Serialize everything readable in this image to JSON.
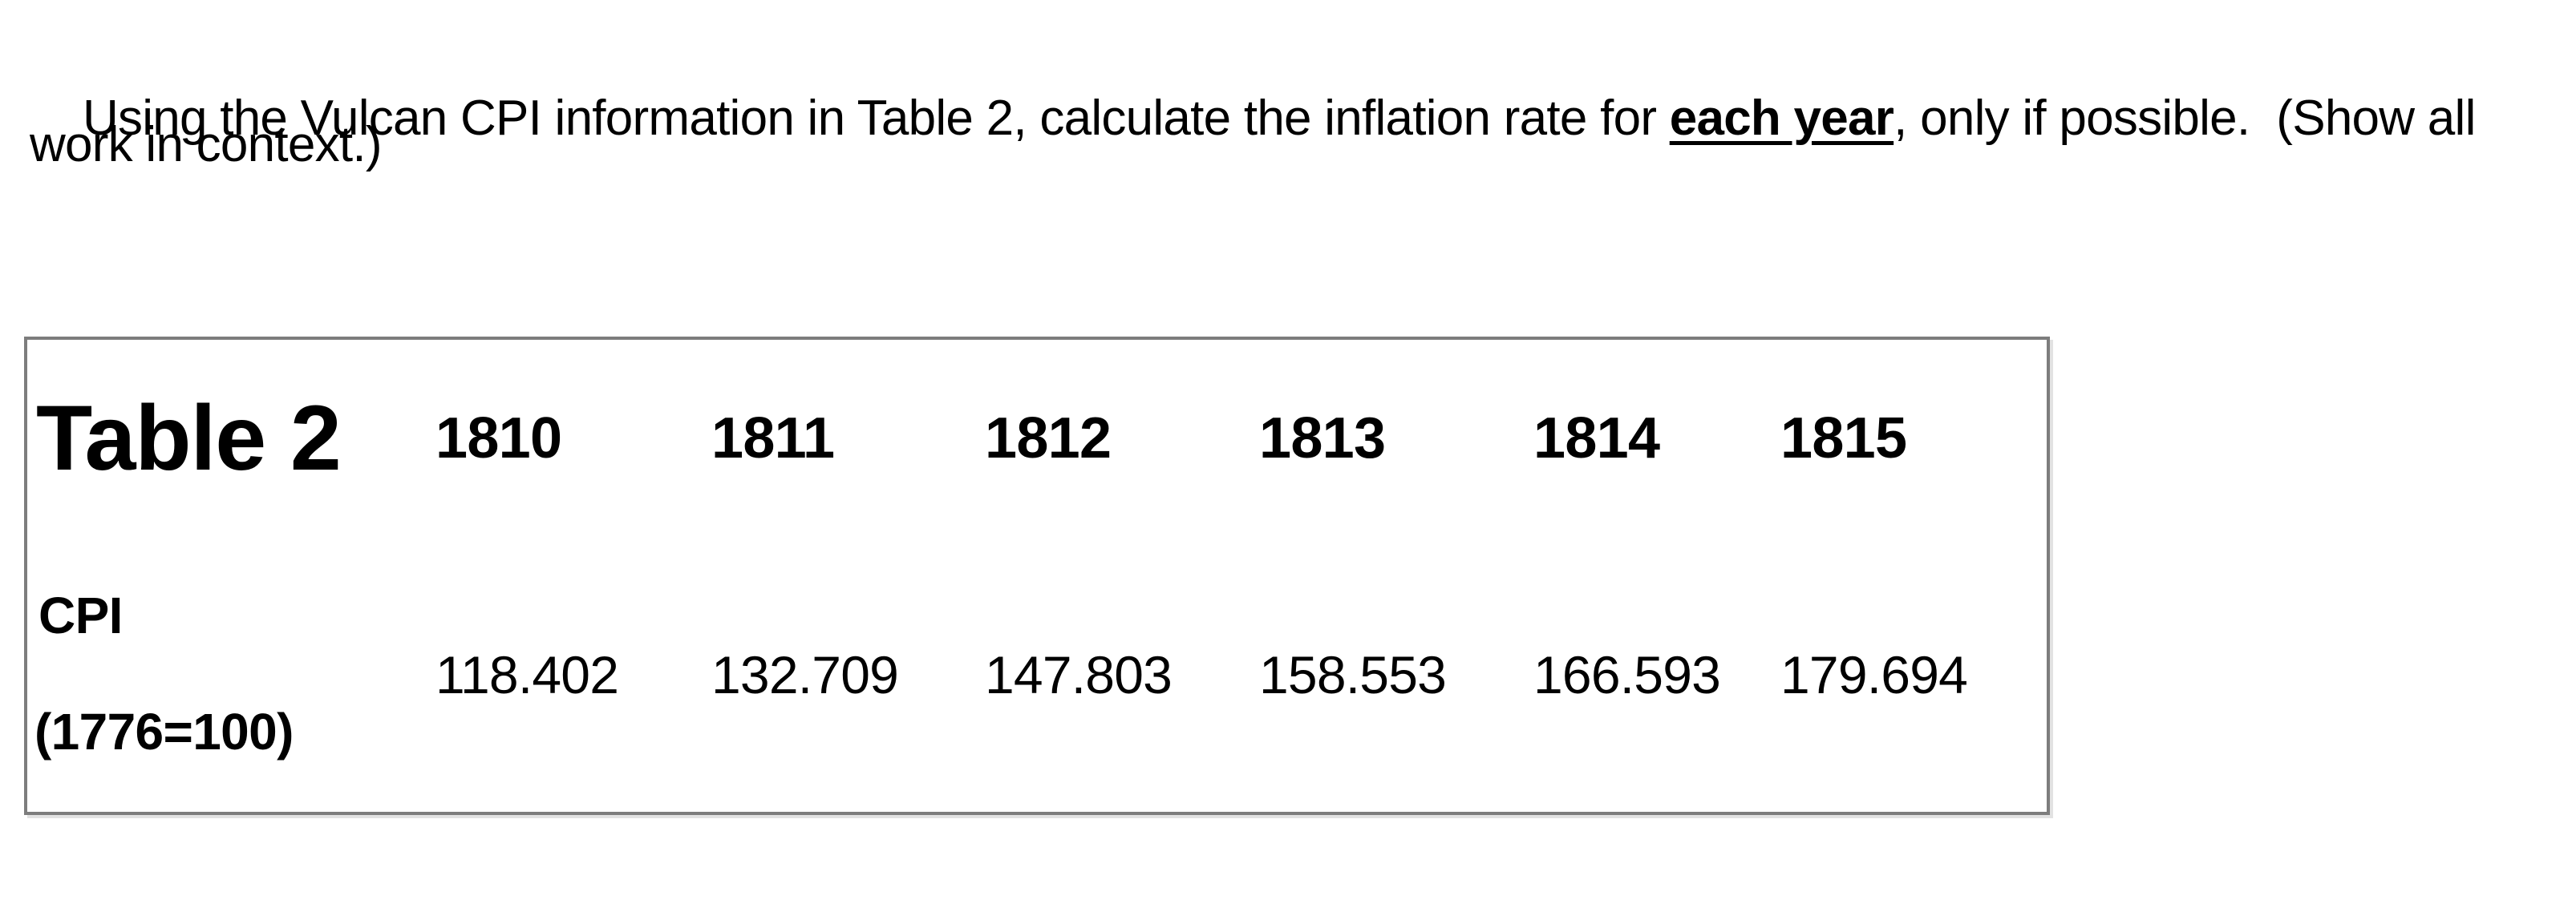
{
  "question": {
    "line1_pre": "Using the Vulcan CPI information in Table 2, calculate the inflation rate for ",
    "line1_emphasis": "each year",
    "line1_post": ", only if possible.  (Show all",
    "line2": "work in context.)"
  },
  "table": {
    "title": "Table 2",
    "row_label_line1": "CPI",
    "row_label_line2": "(1776=100)",
    "years": [
      "1810",
      "1811",
      "1812",
      "1813",
      "1814",
      "1815"
    ],
    "cpi_values": [
      "118.402",
      "132.709",
      "147.803",
      "158.553",
      "166.593",
      "179.694"
    ],
    "border_color": "#7d7d7d",
    "text_color": "#000000"
  }
}
